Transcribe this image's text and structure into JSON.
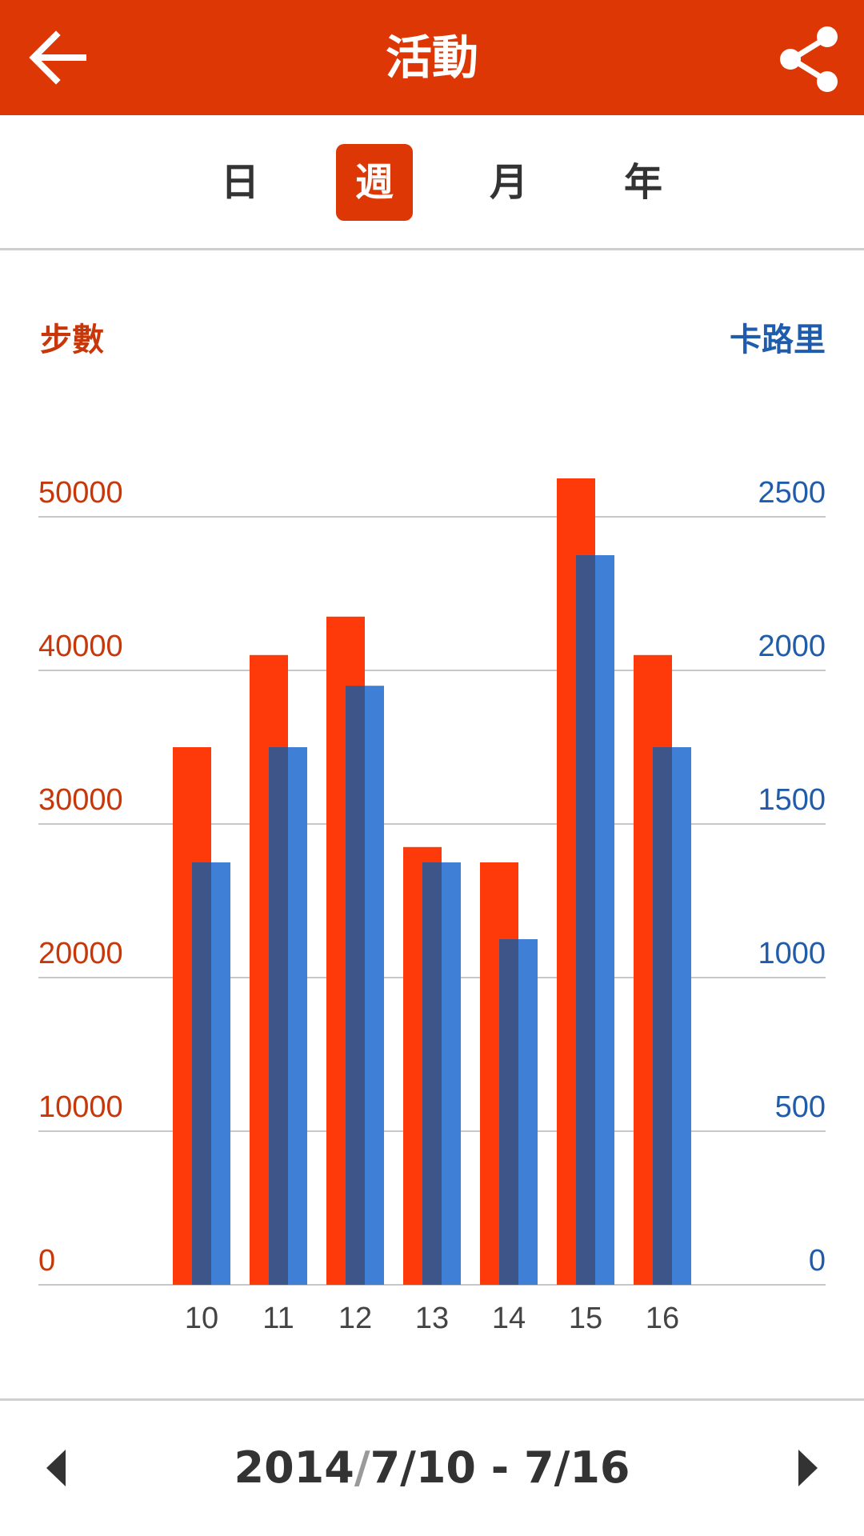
{
  "header": {
    "title": "活動",
    "back_icon": "arrow-left-icon",
    "share_icon": "share-icon",
    "color": "#dd3706"
  },
  "tabs": [
    {
      "label": "日",
      "active": false
    },
    {
      "label": "週",
      "active": true
    },
    {
      "label": "月",
      "active": false
    },
    {
      "label": "年",
      "active": false
    }
  ],
  "chart_data": {
    "type": "bar",
    "categories": [
      "10",
      "11",
      "12",
      "13",
      "14",
      "15",
      "16"
    ],
    "left_axis": {
      "title": "步數",
      "ticks": [
        "0",
        "10000",
        "20000",
        "30000",
        "40000",
        "50000"
      ],
      "range": [
        0,
        50000
      ],
      "color": "#c8370a"
    },
    "right_axis": {
      "title": "卡路里",
      "ticks": [
        "0",
        "500",
        "1000",
        "1500",
        "2000",
        "2500"
      ],
      "range": [
        0,
        2500
      ],
      "color": "#1f5cac"
    },
    "series": [
      {
        "axis": "left",
        "color": "#ff3a0a",
        "values": [
          35000,
          41000,
          43500,
          28500,
          27500,
          52500,
          41000
        ]
      },
      {
        "axis": "right",
        "color": "#3f7fd6",
        "values": [
          1375,
          1750,
          1950,
          1375,
          1125,
          2375,
          1750
        ]
      }
    ],
    "grid": true
  },
  "footer": {
    "year": "2014",
    "slash": "/",
    "range": "7/10 - 7/16",
    "prev_icon": "caret-left-icon",
    "next_icon": "caret-right-icon"
  }
}
